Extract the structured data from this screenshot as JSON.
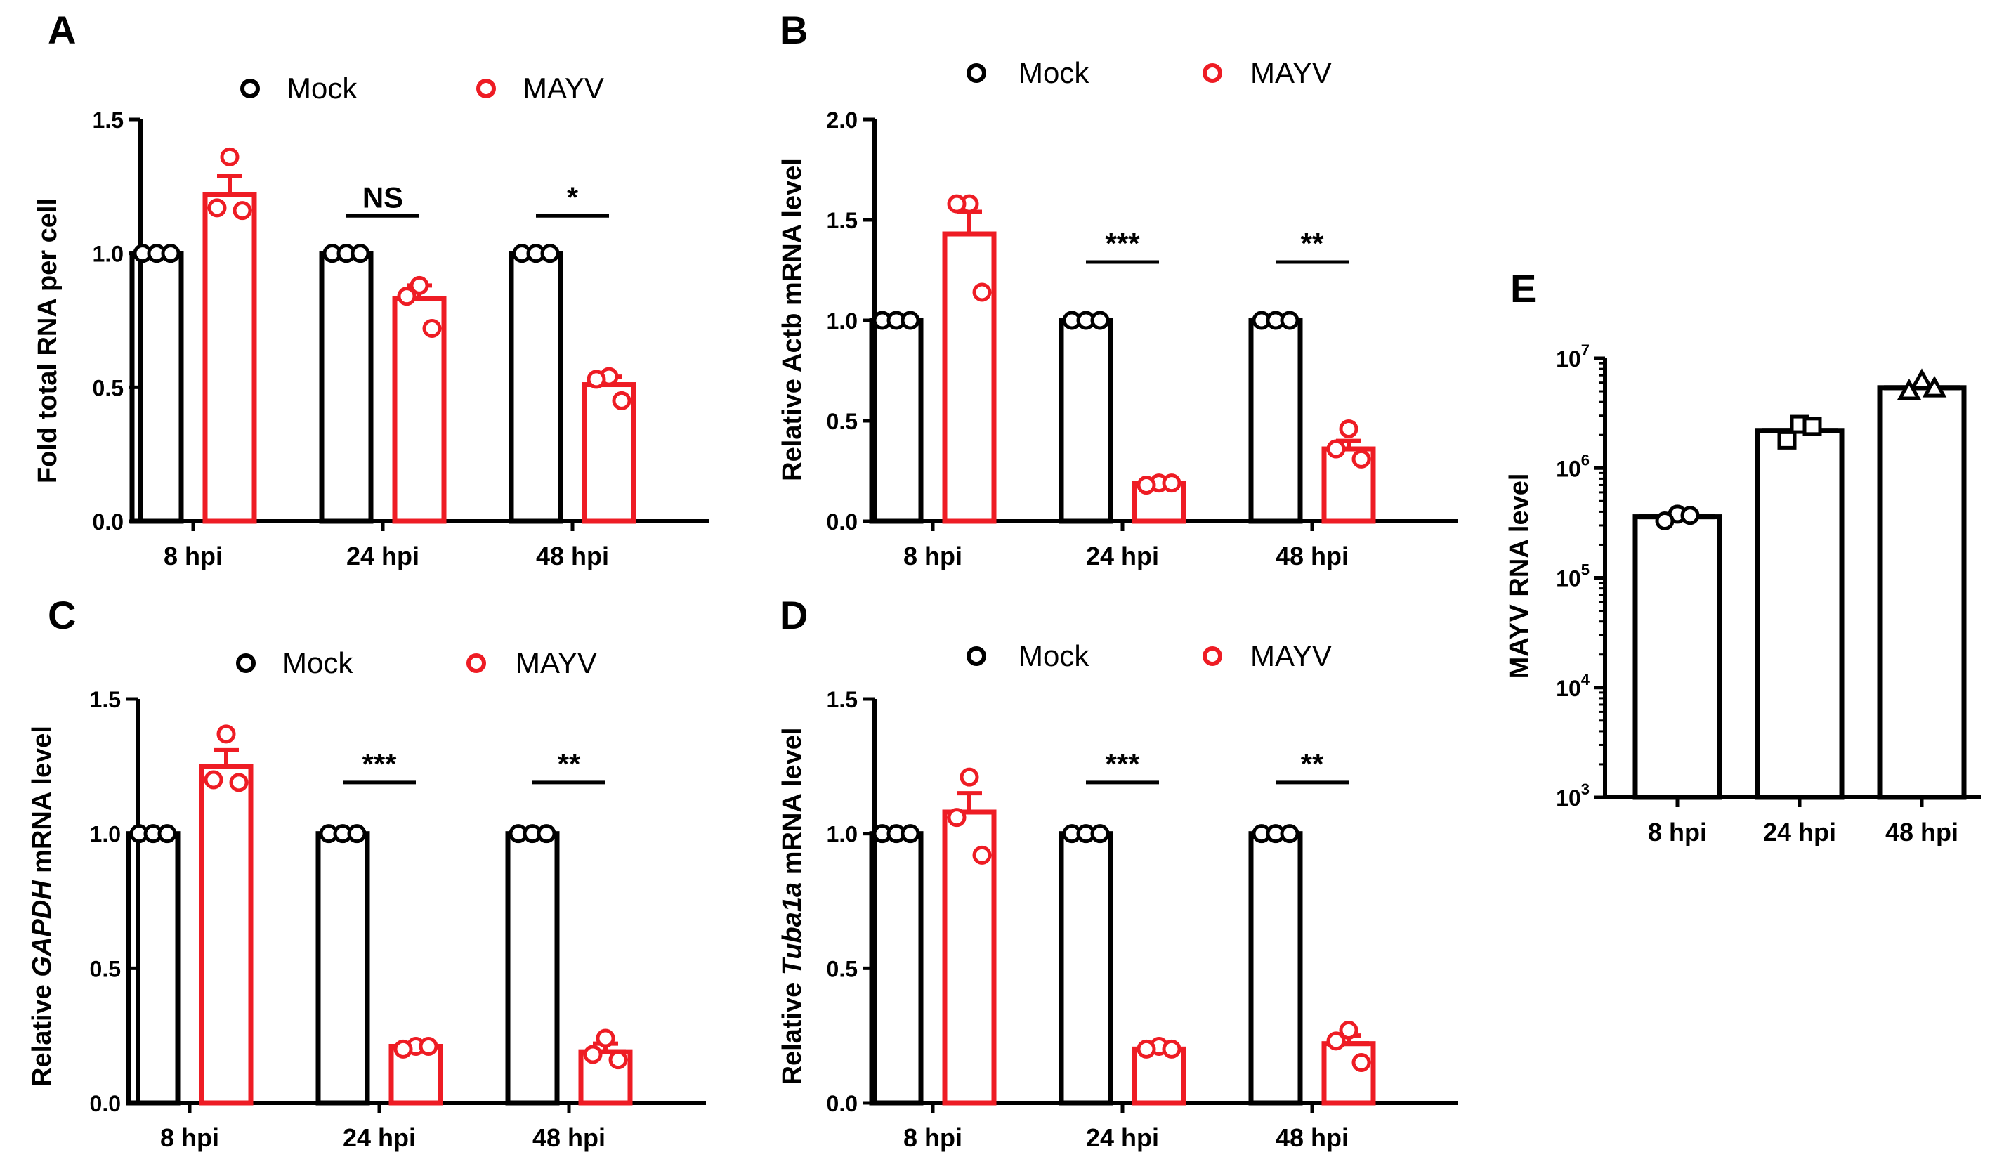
{
  "colors": {
    "mock": "#000000",
    "mayv": "#ee1c24"
  },
  "chart_data": [
    {
      "panel": "A",
      "type": "bar",
      "ylabel": "Fold total RNA per cell",
      "ylabel_italic": "",
      "ylabel_suffix": "",
      "categories": [
        "8 hpi",
        "24 hpi",
        "48 hpi"
      ],
      "ylim": [
        0,
        1.5
      ],
      "yticks": [
        0.0,
        0.5,
        1.0,
        1.5
      ],
      "tick_labels": [
        "0.0",
        "0.5",
        "1.0",
        "1.5"
      ],
      "legend": [
        "Mock",
        "MAYV"
      ],
      "series": [
        {
          "name": "Mock",
          "values": [
            1.0,
            1.0,
            1.0
          ],
          "errors": [
            0,
            0,
            0
          ],
          "points": [
            [
              1.0,
              1.0,
              1.0
            ],
            [
              1.0,
              1.0,
              1.0
            ],
            [
              1.0,
              1.0,
              1.0
            ]
          ]
        },
        {
          "name": "MAYV",
          "values": [
            1.22,
            0.83,
            0.51
          ],
          "errors": [
            0.07,
            0.05,
            0.03
          ],
          "points": [
            [
              1.36,
              1.17,
              1.16
            ],
            [
              0.88,
              0.84,
              0.72
            ],
            [
              0.54,
              0.53,
              0.45
            ]
          ]
        }
      ],
      "significance": [
        {
          "category": 1,
          "label": "NS",
          "y": 1.14
        },
        {
          "category": 2,
          "label": "*",
          "y": 1.14
        }
      ]
    },
    {
      "panel": "B",
      "type": "bar",
      "ylabel": "Relative Actb mRNA level",
      "ylabel_italic": "",
      "ylabel_suffix": "",
      "categories": [
        "8 hpi",
        "24 hpi",
        "48 hpi"
      ],
      "ylim": [
        0,
        2.0
      ],
      "yticks": [
        0.0,
        0.5,
        1.0,
        1.5,
        2.0
      ],
      "tick_labels": [
        "0.0",
        "0.5",
        "1.0",
        "1.5",
        "2.0"
      ],
      "legend": [
        "Mock",
        "MAYV"
      ],
      "series": [
        {
          "name": "Mock",
          "values": [
            1.0,
            1.0,
            1.0
          ],
          "errors": [
            0,
            0,
            0
          ],
          "points": [
            [
              1.0,
              1.0,
              1.0
            ],
            [
              1.0,
              1.0,
              1.0
            ],
            [
              1.0,
              1.0,
              1.0
            ]
          ]
        },
        {
          "name": "MAYV",
          "values": [
            1.43,
            0.19,
            0.36
          ],
          "errors": [
            0.11,
            0.01,
            0.04
          ],
          "points": [
            [
              1.58,
              1.58,
              1.14
            ],
            [
              0.19,
              0.18,
              0.19
            ],
            [
              0.46,
              0.36,
              0.31
            ]
          ]
        }
      ],
      "significance": [
        {
          "category": 1,
          "label": "***",
          "y": 1.29
        },
        {
          "category": 2,
          "label": "**",
          "y": 1.29
        }
      ]
    },
    {
      "panel": "C",
      "type": "bar",
      "ylabel": "Relative ",
      "ylabel_italic": "GAPDH",
      "ylabel_suffix": " mRNA level",
      "categories": [
        "8 hpi",
        "24 hpi",
        "48 hpi"
      ],
      "ylim": [
        0,
        1.5
      ],
      "yticks": [
        0.0,
        0.5,
        1.0,
        1.5
      ],
      "tick_labels": [
        "0.0",
        "0.5",
        "1.0",
        "1.5"
      ],
      "legend": [
        "Mock",
        "MAYV"
      ],
      "series": [
        {
          "name": "Mock",
          "values": [
            1.0,
            1.0,
            1.0
          ],
          "errors": [
            0,
            0,
            0
          ],
          "points": [
            [
              1.0,
              1.0,
              1.0
            ],
            [
              1.0,
              1.0,
              1.0
            ],
            [
              1.0,
              1.0,
              1.0
            ]
          ]
        },
        {
          "name": "MAYV",
          "values": [
            1.25,
            0.21,
            0.19
          ],
          "errors": [
            0.06,
            0.01,
            0.03
          ],
          "points": [
            [
              1.37,
              1.2,
              1.19
            ],
            [
              0.21,
              0.2,
              0.21
            ],
            [
              0.24,
              0.18,
              0.16
            ]
          ]
        }
      ],
      "significance": [
        {
          "category": 1,
          "label": "***",
          "y": 1.19
        },
        {
          "category": 2,
          "label": "**",
          "y": 1.19
        }
      ]
    },
    {
      "panel": "D",
      "type": "bar",
      "ylabel": "Relative ",
      "ylabel_italic": "Tuba1a",
      "ylabel_suffix": " mRNA level",
      "categories": [
        "8 hpi",
        "24 hpi",
        "48 hpi"
      ],
      "ylim": [
        0,
        1.5
      ],
      "yticks": [
        0.0,
        0.5,
        1.0,
        1.5
      ],
      "tick_labels": [
        "0.0",
        "0.5",
        "1.0",
        "1.5"
      ],
      "legend": [
        "Mock",
        "MAYV"
      ],
      "series": [
        {
          "name": "Mock",
          "values": [
            1.0,
            1.0,
            1.0
          ],
          "errors": [
            0,
            0,
            0
          ],
          "points": [
            [
              1.0,
              1.0,
              1.0
            ],
            [
              1.0,
              1.0,
              1.0
            ],
            [
              1.0,
              1.0,
              1.0
            ]
          ]
        },
        {
          "name": "MAYV",
          "values": [
            1.08,
            0.2,
            0.22
          ],
          "errors": [
            0.07,
            0.01,
            0.03
          ],
          "points": [
            [
              1.21,
              1.06,
              0.92
            ],
            [
              0.21,
              0.2,
              0.2
            ],
            [
              0.27,
              0.23,
              0.15
            ]
          ]
        }
      ],
      "significance": [
        {
          "category": 1,
          "label": "***",
          "y": 1.19
        },
        {
          "category": 2,
          "label": "**",
          "y": 1.19
        }
      ]
    },
    {
      "panel": "E",
      "type": "bar",
      "yscale": "log",
      "ylabel": "MAYV RNA level",
      "ylabel_italic": "",
      "ylabel_suffix": "",
      "categories": [
        "8 hpi",
        "24 hpi",
        "48 hpi"
      ],
      "ylim": [
        1000,
        10000000
      ],
      "yticks": [
        1000,
        10000,
        100000,
        1000000,
        10000000
      ],
      "tick_labels": [
        "10",
        "10",
        "10",
        "10",
        "10"
      ],
      "tick_exponents": [
        "3",
        "4",
        "5",
        "6",
        "7"
      ],
      "markers": [
        "circle",
        "square",
        "triangle"
      ],
      "series": [
        {
          "name": "MAYV",
          "values": [
            360000,
            2200000,
            5400000
          ],
          "errors": [
            0,
            0,
            0
          ],
          "points": [
            [
              380000,
              330000,
              370000
            ],
            [
              2500000,
              1800000,
              2400000
            ],
            [
              6200000,
              5000000,
              5300000
            ]
          ]
        }
      ]
    }
  ]
}
